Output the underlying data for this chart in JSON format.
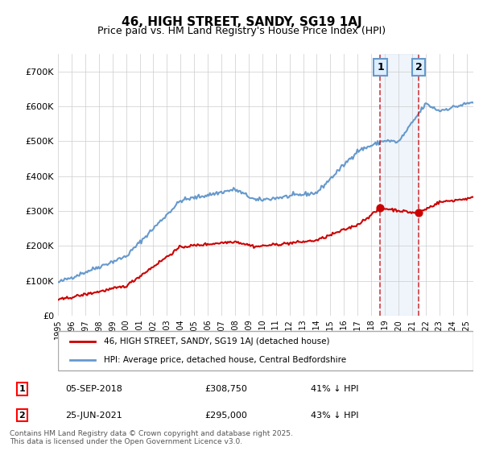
{
  "title1": "46, HIGH STREET, SANDY, SG19 1AJ",
  "title2": "Price paid vs. HM Land Registry's House Price Index (HPI)",
  "ylim": [
    0,
    750000
  ],
  "yticks": [
    0,
    100000,
    200000,
    300000,
    400000,
    500000,
    600000,
    700000
  ],
  "background_color": "#ffffff",
  "grid_color": "#cccccc",
  "hpi_color": "#6699cc",
  "price_color": "#cc0000",
  "vline_color": "#cc0000",
  "annotation_box_color": "#ddeeff",
  "annotation_border_color": "#6699cc",
  "point1_year": 2018.67,
  "point1_price": 308750,
  "point1_label": "1",
  "point1_date": "05-SEP-2018",
  "point1_amount": "£308,750",
  "point1_pct": "41% ↓ HPI",
  "point2_year": 2021.48,
  "point2_price": 295000,
  "point2_label": "2",
  "point2_date": "25-JUN-2021",
  "point2_amount": "£295,000",
  "point2_pct": "43% ↓ HPI",
  "legend1": "46, HIGH STREET, SANDY, SG19 1AJ (detached house)",
  "legend2": "HPI: Average price, detached house, Central Bedfordshire",
  "footnote": "Contains HM Land Registry data © Crown copyright and database right 2025.\nThis data is licensed under the Open Government Licence v3.0.",
  "xmin": 1995,
  "xmax": 2025.5
}
